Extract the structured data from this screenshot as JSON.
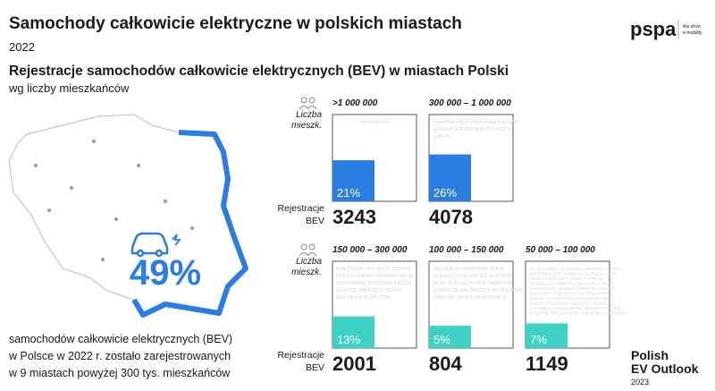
{
  "chart_data": {
    "type": "bar",
    "title": "Samochody całkowicie elektryczne w polskich miastach",
    "year": "2022",
    "subtitle": "Rejestracje samochodów całkowicie elektrycznych (BEV) w miastach Polski",
    "subtitle2": "wg liczby mieszkańców",
    "highlight_value": 49,
    "highlight_label": "49%",
    "caption": [
      "samochodów całkowicie elektrycznych (BEV)",
      "w Polsce w 2022 r. zostało zarejestrowanych",
      "w 9 miastach powyżej 300 tys. mieszkańców"
    ],
    "population_label": [
      "Liczba",
      "mieszk."
    ],
    "registrations_label": [
      "Rejestracje",
      "BEV"
    ],
    "categories": [
      ">1 000 000",
      "300 000 – 1 000 000",
      "150 000 – 300 000",
      "100 000 – 150 000",
      "50 000 – 100 000"
    ],
    "values": [
      21,
      26,
      13,
      5,
      7
    ],
    "value_labels": [
      "21%",
      "26%",
      "13%",
      "5%",
      "7%"
    ],
    "colors": [
      "#2a7de1",
      "#2a7de1",
      "#3ed1c4",
      "#3ed1c4",
      "#3ed1c4"
    ],
    "registrations": [
      3243,
      4078,
      2001,
      804,
      1149
    ],
    "cities": [
      "WARSZAWA",
      "KRAKÓW ŁÓDŹ WROCŁAW POZNAŃ GDAŃSK SZCZECIN BYDGOSZCZ LUBLIN",
      "BIAŁYSTOK KATOWICE GDYNIA CZĘSTOCHOWA RADOM TORUŃ SOSNOWIEC RZESZÓW KIELCE GLIWICE ZABRZE OLSZTYN BIELSKO-BIAŁA BYTOM",
      "ZIELONA GÓRA RYBNIK RUDA ŚLĄSKA TYCHY OPOLE GORZÓW WLKP. ELBLĄG PŁOCK DĄBROWA GÓRNICZA WAŁBRZYCH WŁOCŁAWEK TARNÓW CHORZÓW KOSZALIN",
      "KALISZ LEGNICA GRUDZIĄDZ JAWORZNO SŁUPSK JASTRZĘBIE-ZDRÓJ NOWY SĄCZ JELENIA GÓRA SIEDLCE MYSŁOWICE KONIN PIOTRKÓW TRYBUNALSKI INOWROCŁAW LUBIN OSTRÓW WIELKOPOLSKI SUWAŁKI STARGARD GNIEZNO OSTROWIEC ŚWIĘTOKRZYSKI SIEMIANOWICE ŚLĄSKIE GŁOGÓW PABIANICE LESZNO ŻORY ZAMOŚĆ PRUSZKÓW ŁOMŻA EŁK TOMASZÓW MAZOWIECKI CHEŁM MIELEC KĘDZIERZYN-KOŹLE PRZEMYŚL STALOWA WOLA TCZEW BIAŁA PODLASKA"
    ],
    "ylim": [
      -14,
      60
    ]
  },
  "branding": {
    "logo": "pspa",
    "tagline": [
      "like drive",
      "e-mobility"
    ],
    "report": [
      "Polish",
      "EV Outlook",
      "2023"
    ]
  }
}
